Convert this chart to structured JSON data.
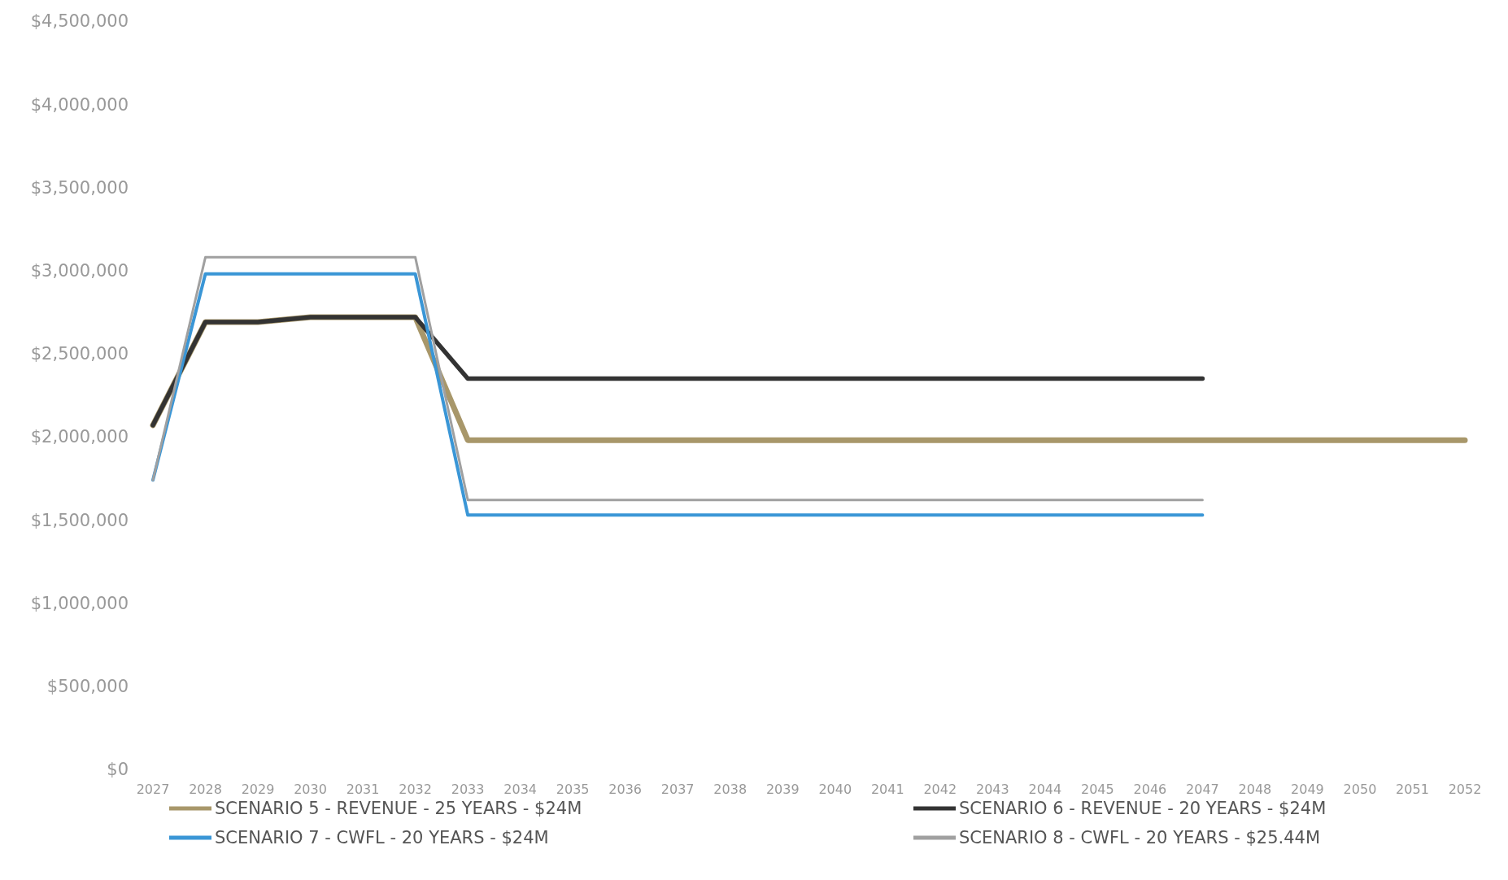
{
  "chart_data": {
    "type": "line",
    "x": [
      2027,
      2028,
      2029,
      2030,
      2031,
      2032,
      2033,
      2034,
      2035,
      2036,
      2037,
      2038,
      2039,
      2040,
      2041,
      2042,
      2043,
      2044,
      2045,
      2046,
      2047,
      2048,
      2049,
      2050,
      2051,
      2052
    ],
    "series": [
      {
        "name": "SCENARIO 5 - REVENUE - 25 YEARS - $24M",
        "color": "#a8976a",
        "values": [
          2070000,
          2690000,
          2690000,
          2720000,
          2720000,
          2720000,
          1980000,
          1980000,
          1980000,
          1980000,
          1980000,
          1980000,
          1980000,
          1980000,
          1980000,
          1980000,
          1980000,
          1980000,
          1980000,
          1980000,
          1980000,
          1980000,
          1980000,
          1980000,
          1980000,
          1980000
        ]
      },
      {
        "name": "SCENARIO 6 - REVENUE - 20 YEARS - $24M",
        "color": "#333333",
        "values": [
          2070000,
          2690000,
          2690000,
          2720000,
          2720000,
          2720000,
          2350000,
          2350000,
          2350000,
          2350000,
          2350000,
          2350000,
          2350000,
          2350000,
          2350000,
          2350000,
          2350000,
          2350000,
          2350000,
          2350000,
          2350000,
          null,
          null,
          null,
          null,
          null
        ]
      },
      {
        "name": "SCENARIO 7 - CWFL - 20 YEARS - $24M",
        "color": "#3a96d6",
        "values": [
          1740000,
          2980000,
          2980000,
          2980000,
          2980000,
          2980000,
          1530000,
          1530000,
          1530000,
          1530000,
          1530000,
          1530000,
          1530000,
          1530000,
          1530000,
          1530000,
          1530000,
          1530000,
          1530000,
          1530000,
          1530000,
          null,
          null,
          null,
          null,
          null
        ]
      },
      {
        "name": "SCENARIO 8 - CWFL - 20 YEARS - $25.44M",
        "color": "#a0a0a0",
        "values": [
          1740000,
          3080000,
          3080000,
          3080000,
          3080000,
          3080000,
          1620000,
          1620000,
          1620000,
          1620000,
          1620000,
          1620000,
          1620000,
          1620000,
          1620000,
          1620000,
          1620000,
          1620000,
          1620000,
          1620000,
          1620000,
          null,
          null,
          null,
          null,
          null
        ]
      }
    ],
    "xlim": [
      2027,
      2052
    ],
    "xticks": [
      2027,
      2028,
      2029,
      2030,
      2031,
      2032,
      2033,
      2034,
      2035,
      2036,
      2037,
      2038,
      2039,
      2040,
      2041,
      2042,
      2043,
      2044,
      2045,
      2046,
      2047,
      2048,
      2049,
      2050,
      2051,
      2052
    ],
    "ylim": [
      0,
      4500000
    ],
    "yticks": [
      {
        "value": 0,
        "label": "$0"
      },
      {
        "value": 500000,
        "label": "$500,000"
      },
      {
        "value": 1000000,
        "label": "$1,000,000"
      },
      {
        "value": 1500000,
        "label": "$1,500,000"
      },
      {
        "value": 2000000,
        "label": "$2,000,000"
      },
      {
        "value": 2500000,
        "label": "$2,500,000"
      },
      {
        "value": 3000000,
        "label": "$3,000,000"
      },
      {
        "value": 3500000,
        "label": "$3,500,000"
      },
      {
        "value": 4000000,
        "label": "$4,000,000"
      },
      {
        "value": 4500000,
        "label": "$4,500,000"
      }
    ],
    "grid": false,
    "legend": "bottom",
    "marker": "none",
    "line_style": "solid"
  }
}
